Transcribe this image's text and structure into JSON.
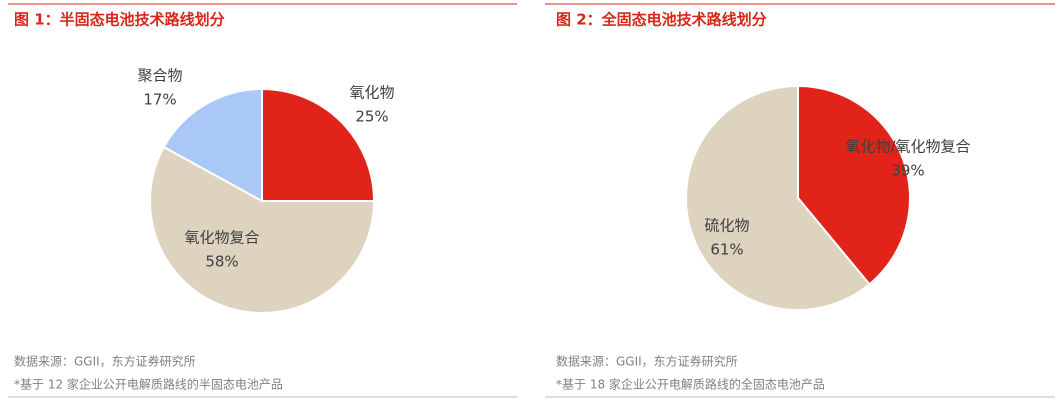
{
  "chart_data": [
    {
      "type": "pie",
      "title": "图 1：半固态电池技术路线划分",
      "categories": [
        "氧化物",
        "氧化物复合",
        "聚合物"
      ],
      "values": [
        25,
        58,
        17
      ],
      "value_labels": [
        "25%",
        "58%",
        "17%"
      ],
      "colors": [
        "#e2231a",
        "#ddd3bf",
        "#a9c8f5"
      ],
      "notes": [
        "数据来源：GGII，东方证券研究所",
        "*基于 12 家企业公开电解质路线的半固态电池产品"
      ]
    },
    {
      "type": "pie",
      "title": "图 2：全固态电池技术路线划分",
      "categories": [
        "氧化物/氧化物复合",
        "硫化物"
      ],
      "values": [
        39,
        61
      ],
      "value_labels": [
        "39%",
        "61%"
      ],
      "colors": [
        "#e2231a",
        "#ddd3bf"
      ],
      "notes": [
        "数据来源：GGII，东方证券研究所",
        "*基于 18 家企业公开电解质路线的全固态电池产品"
      ]
    }
  ]
}
